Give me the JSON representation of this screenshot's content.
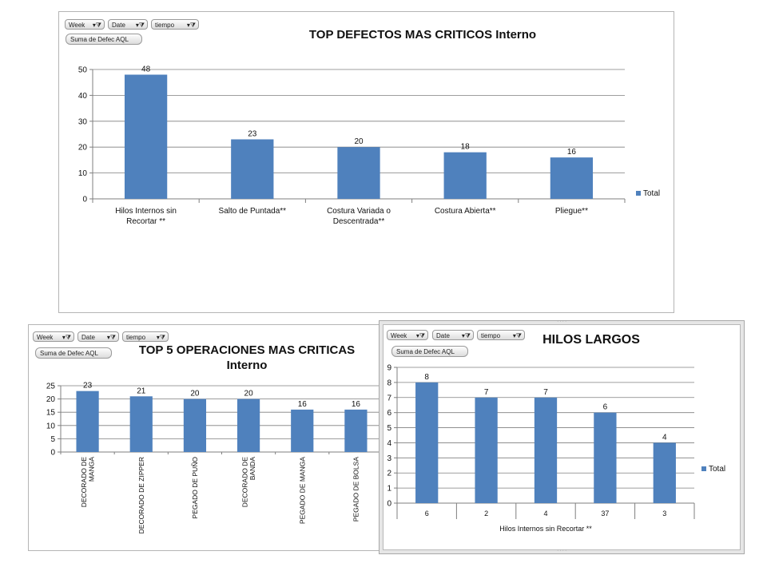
{
  "filters": {
    "week": "Week",
    "date": "Date",
    "tiempo": "tiempo"
  },
  "value_field": "Suma de Defec AQL",
  "colors": {
    "bar": "#4f81bd",
    "grid": "#7f7f7f",
    "axis": "#7f7f7f"
  },
  "legend_label": "Total",
  "chart_data": [
    {
      "type": "bar",
      "title": "TOP DEFECTOS MAS CRITICOS Interno",
      "categories": [
        "Hilos Internos sin Recortar **",
        "Salto de Puntada**",
        "Costura Variada o Descentrada**",
        "Costura Abierta**",
        "Pliegue**"
      ],
      "category_lines": [
        [
          "Hilos Internos sin",
          "Recortar **"
        ],
        [
          "Salto de Puntada**"
        ],
        [
          "Costura Variada o",
          "Descentrada**"
        ],
        [
          "Costura Abierta**"
        ],
        [
          "Pliegue**"
        ]
      ],
      "series": [
        {
          "name": "Total",
          "values": [
            48,
            23,
            20,
            18,
            16
          ]
        }
      ],
      "yticks": [
        0,
        10,
        20,
        30,
        40,
        50
      ],
      "ylim": [
        0,
        50
      ],
      "grid": true,
      "legend": "right"
    },
    {
      "type": "bar",
      "title": "TOP 5 OPERACIONES MAS CRITICAS Interno",
      "title_lines": [
        "TOP 5 OPERACIONES MAS CRITICAS",
        "Interno"
      ],
      "categories": [
        "DECORADO DE MANGA",
        "DECORADO DE ZIPPER",
        "PEGADO DE PUÑO",
        "DECORADO DE BANDA",
        "PEGADO DE MANGA",
        "PEGADO DE BOLSA"
      ],
      "category_lines": [
        [
          "DECORADO DE",
          "MANGA"
        ],
        [
          "DECORADO DE ZIPPER"
        ],
        [
          "PEGADO DE PUÑO"
        ],
        [
          "DECORADO DE",
          "BANDA"
        ],
        [
          "PEGADO DE MANGA"
        ],
        [
          "PEGADO DE BOLSA"
        ]
      ],
      "series": [
        {
          "values": [
            23,
            21,
            20,
            20,
            16,
            16
          ]
        }
      ],
      "yticks": [
        0,
        5,
        10,
        15,
        20,
        25
      ],
      "ylim": [
        0,
        25
      ],
      "grid": true
    },
    {
      "type": "bar",
      "title": "HILOS LARGOS",
      "categories": [
        "6",
        "2",
        "4",
        "37",
        "3"
      ],
      "xlabel": "Hilos Internos sin Recortar **",
      "series": [
        {
          "name": "Total",
          "values": [
            8,
            7,
            7,
            6,
            4
          ]
        }
      ],
      "yticks": [
        0,
        1,
        2,
        3,
        4,
        5,
        6,
        7,
        8,
        9
      ],
      "ylim": [
        0,
        9
      ],
      "grid": true,
      "legend": "right"
    }
  ]
}
